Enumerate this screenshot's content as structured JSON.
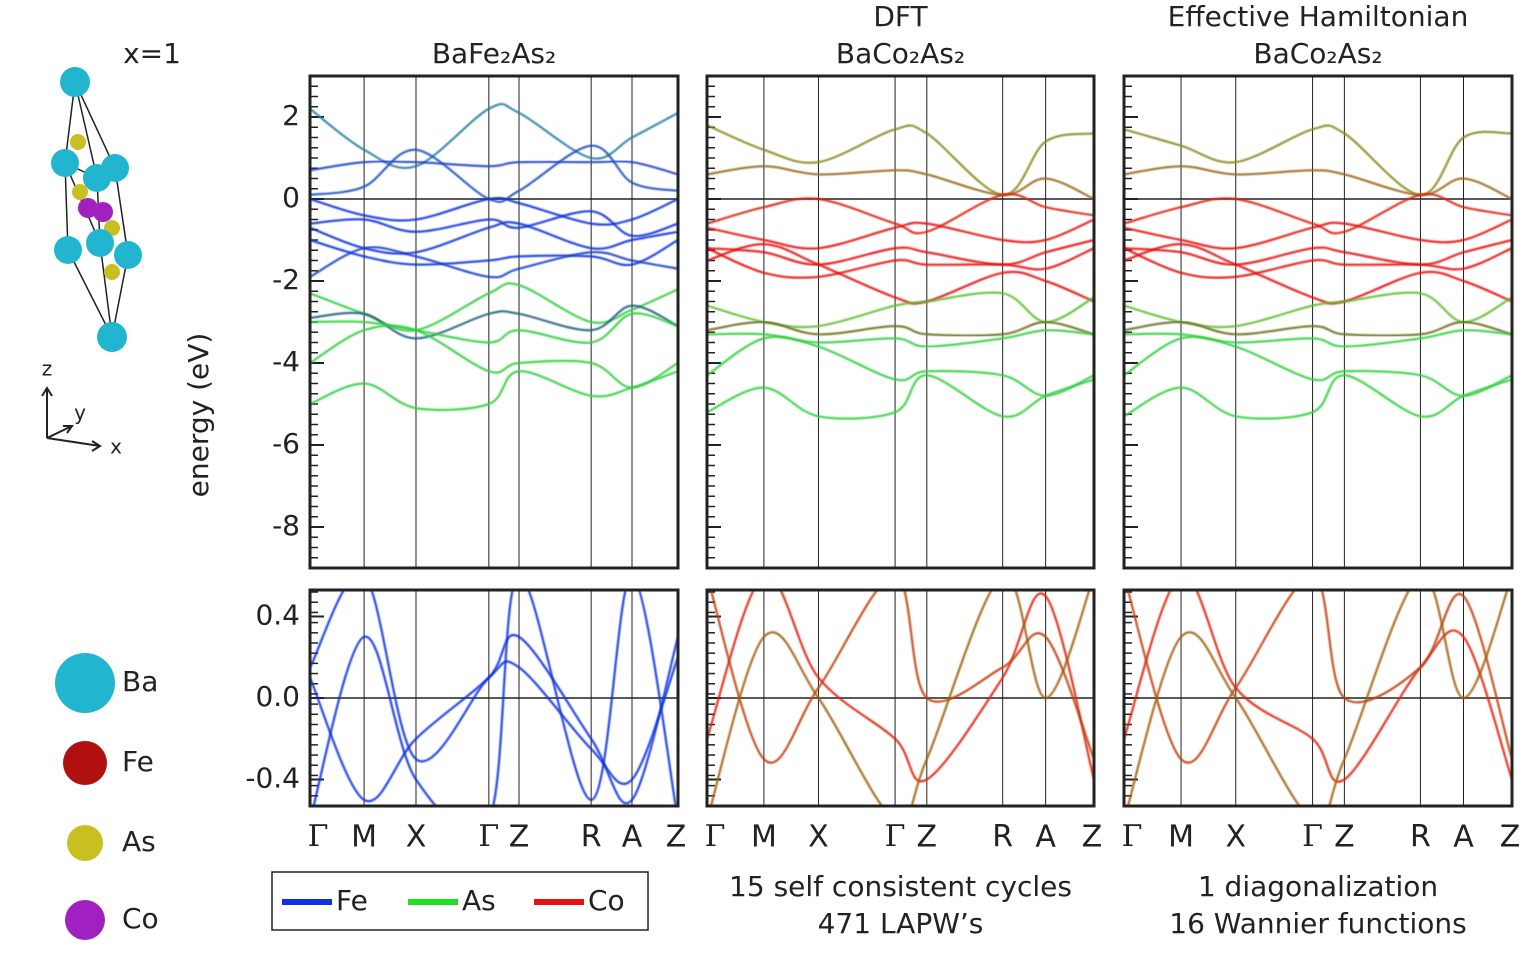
{
  "figure_label": "x=1",
  "axis_label": "energy (eV)",
  "structure_axes": [
    "z",
    "y",
    "x"
  ],
  "atoms": [
    {
      "name": "Ba",
      "color": "#22b5cf"
    },
    {
      "name": "Fe",
      "color": "#b01010"
    },
    {
      "name": "As",
      "color": "#c8c020"
    },
    {
      "name": "Co",
      "color": "#a020c0"
    }
  ],
  "legend": [
    {
      "name": "Fe",
      "color": "#1030e8"
    },
    {
      "name": "As",
      "color": "#20e020"
    },
    {
      "name": "Co",
      "color": "#e81010"
    }
  ],
  "chart_data": [
    {
      "type": "line",
      "title": [
        "BaFe₂As₂"
      ],
      "ylim": [
        -9,
        3
      ],
      "yticks": [
        -8,
        -6,
        -4,
        -2,
        0,
        2
      ],
      "xlim": [
        0,
        1
      ],
      "x": [
        0,
        0.147,
        0.288,
        0.486,
        0.568,
        0.764,
        0.875,
        1
      ],
      "series": [
        {
          "color": "#2a80a0",
          "values": [
            2.2,
            1.2,
            0.8,
            2.2,
            2.1,
            1.0,
            1.5,
            2.1
          ]
        },
        {
          "color": "#2040d0",
          "values": [
            0.7,
            0.9,
            0.9,
            0.8,
            0.9,
            0.9,
            0.9,
            0.6
          ]
        },
        {
          "color": "#2050c0",
          "values": [
            0.1,
            0.3,
            1.2,
            0.0,
            0.2,
            1.3,
            0.4,
            0.2
          ]
        },
        {
          "color": "#1030e0",
          "values": [
            0.0,
            -0.4,
            -0.5,
            0.0,
            -0.1,
            -0.6,
            -0.5,
            0.0
          ]
        },
        {
          "color": "#1030e0",
          "values": [
            -0.6,
            -0.5,
            -0.8,
            -0.5,
            -0.7,
            -0.3,
            -0.9,
            -0.6
          ]
        },
        {
          "color": "#1030e0",
          "values": [
            -0.7,
            -1.2,
            -1.3,
            -0.7,
            -0.6,
            -1.2,
            -1.0,
            -0.8
          ]
        },
        {
          "color": "#1030e0",
          "values": [
            -1.0,
            -1.4,
            -1.6,
            -1.5,
            -1.4,
            -1.4,
            -1.6,
            -1.0
          ]
        },
        {
          "color": "#1840d0",
          "values": [
            -1.9,
            -1.2,
            -1.4,
            -1.9,
            -1.7,
            -1.3,
            -1.5,
            -1.7
          ]
        },
        {
          "color": "#30d040",
          "values": [
            -2.3,
            -2.8,
            -3.2,
            -2.3,
            -2.1,
            -3.0,
            -2.7,
            -2.2
          ]
        },
        {
          "color": "#206080",
          "values": [
            -2.9,
            -2.8,
            -3.4,
            -2.8,
            -2.8,
            -3.2,
            -2.6,
            -3.1
          ]
        },
        {
          "color": "#30d040",
          "values": [
            -3.0,
            -3.0,
            -3.2,
            -3.5,
            -3.2,
            -3.5,
            -2.8,
            -3.1
          ]
        },
        {
          "color": "#30d040",
          "values": [
            -4.0,
            -3.2,
            -3.2,
            -4.2,
            -4.0,
            -4.0,
            -4.6,
            -4.0
          ]
        },
        {
          "color": "#30d040",
          "values": [
            -5.0,
            -4.5,
            -5.1,
            -5.0,
            -4.2,
            -4.8,
            -4.6,
            -4.2
          ]
        }
      ]
    },
    {
      "type": "line",
      "title": [
        "DFT",
        "BaCo₂As₂"
      ],
      "ylim": [
        -9,
        3
      ],
      "yticks": [
        -8,
        -6,
        -4,
        -2,
        0,
        2
      ],
      "xlim": [
        0,
        1
      ],
      "x": [
        0,
        0.147,
        0.288,
        0.486,
        0.568,
        0.764,
        0.875,
        1
      ],
      "series": [
        {
          "color": "#8a8a20",
          "values": [
            1.8,
            1.2,
            0.9,
            1.7,
            1.6,
            0.1,
            1.4,
            1.6
          ]
        },
        {
          "color": "#9a6a20",
          "values": [
            0.6,
            0.8,
            0.6,
            0.7,
            0.6,
            0.1,
            0.5,
            0.0
          ]
        },
        {
          "color": "#e02010",
          "values": [
            -0.6,
            -0.2,
            0.0,
            -0.6,
            -0.8,
            0.1,
            -0.2,
            -0.4
          ]
        },
        {
          "color": "#e81010",
          "values": [
            -0.7,
            -1.0,
            -1.2,
            -0.7,
            -0.6,
            -1.0,
            -1.0,
            -0.5
          ]
        },
        {
          "color": "#e81010",
          "values": [
            -1.2,
            -1.3,
            -1.6,
            -1.2,
            -1.3,
            -1.6,
            -1.3,
            -1.0
          ]
        },
        {
          "color": "#e81010",
          "values": [
            -1.2,
            -1.8,
            -1.9,
            -1.5,
            -1.6,
            -1.6,
            -1.7,
            -1.2
          ]
        },
        {
          "color": "#e81010",
          "values": [
            -1.5,
            -1.1,
            -1.6,
            -2.4,
            -2.5,
            -1.8,
            -2.0,
            -2.5
          ]
        },
        {
          "color": "#60c030",
          "values": [
            -2.6,
            -3.0,
            -3.1,
            -2.6,
            -2.5,
            -2.3,
            -3.0,
            -2.4
          ]
        },
        {
          "color": "#707020",
          "values": [
            -3.2,
            -3.0,
            -3.3,
            -3.1,
            -3.3,
            -3.3,
            -3.0,
            -3.3
          ]
        },
        {
          "color": "#30d040",
          "values": [
            -3.3,
            -3.3,
            -3.5,
            -3.4,
            -3.6,
            -3.4,
            -3.2,
            -3.3
          ]
        },
        {
          "color": "#30d040",
          "values": [
            -4.3,
            -3.4,
            -3.6,
            -4.4,
            -4.2,
            -4.3,
            -4.8,
            -4.3
          ]
        },
        {
          "color": "#30d040",
          "values": [
            -5.2,
            -4.6,
            -5.3,
            -5.2,
            -4.3,
            -5.3,
            -4.8,
            -4.4
          ]
        }
      ]
    },
    {
      "type": "line",
      "title": [
        "Effective Hamiltonian",
        "BaCo₂As₂"
      ],
      "ylim": [
        -9,
        3
      ],
      "yticks": [
        -8,
        -6,
        -4,
        -2,
        0,
        2
      ],
      "xlim": [
        0,
        1
      ],
      "x": [
        0,
        0.147,
        0.288,
        0.486,
        0.568,
        0.764,
        0.875,
        1
      ],
      "series": [
        {
          "color": "#8a8a20",
          "values": [
            1.7,
            1.3,
            0.9,
            1.7,
            1.6,
            0.1,
            1.5,
            1.6
          ]
        },
        {
          "color": "#9a6a20",
          "values": [
            0.6,
            0.8,
            0.6,
            0.7,
            0.6,
            0.1,
            0.5,
            0.0
          ]
        },
        {
          "color": "#e02010",
          "values": [
            -0.6,
            -0.2,
            0.0,
            -0.6,
            -0.8,
            0.1,
            -0.2,
            -0.4
          ]
        },
        {
          "color": "#e81010",
          "values": [
            -0.7,
            -1.0,
            -1.2,
            -0.7,
            -0.6,
            -1.0,
            -1.0,
            -0.5
          ]
        },
        {
          "color": "#e81010",
          "values": [
            -1.2,
            -1.3,
            -1.6,
            -1.2,
            -1.3,
            -1.6,
            -1.3,
            -1.0
          ]
        },
        {
          "color": "#e81010",
          "values": [
            -1.2,
            -1.8,
            -1.9,
            -1.5,
            -1.6,
            -1.6,
            -1.7,
            -1.2
          ]
        },
        {
          "color": "#e81010",
          "values": [
            -1.5,
            -1.1,
            -1.6,
            -2.4,
            -2.5,
            -1.8,
            -2.0,
            -2.5
          ]
        },
        {
          "color": "#60c030",
          "values": [
            -2.6,
            -3.0,
            -3.1,
            -2.6,
            -2.5,
            -2.3,
            -3.0,
            -2.4
          ]
        },
        {
          "color": "#707020",
          "values": [
            -3.2,
            -3.0,
            -3.3,
            -3.1,
            -3.3,
            -3.3,
            -3.0,
            -3.3
          ]
        },
        {
          "color": "#30d040",
          "values": [
            -3.3,
            -3.3,
            -3.5,
            -3.4,
            -3.6,
            -3.4,
            -3.2,
            -3.3
          ]
        },
        {
          "color": "#30d040",
          "values": [
            -4.3,
            -3.4,
            -3.6,
            -4.4,
            -4.2,
            -4.3,
            -4.8,
            -4.3
          ]
        },
        {
          "color": "#30d040",
          "values": [
            -5.3,
            -4.6,
            -5.3,
            -5.2,
            -4.3,
            -5.3,
            -4.8,
            -4.4
          ]
        }
      ]
    },
    {
      "type": "line",
      "ylim": [
        -0.53,
        0.53
      ],
      "yticks": [
        {
          "value": -0.4,
          "label": "-0.4"
        },
        {
          "value": 0,
          "label": "0.0"
        },
        0.4
      ],
      "xlim": [
        0,
        1
      ],
      "x": [
        0,
        0.147,
        0.288,
        0.486,
        0.568,
        0.764,
        0.875,
        1
      ],
      "categories": [
        "Γ",
        "M",
        "X",
        "Γ",
        "Z",
        "R",
        "A",
        "Z"
      ],
      "series": [
        {
          "color": "#1030e0",
          "values": [
            0.1,
            -0.5,
            -0.2,
            0.1,
            0.3,
            -0.2,
            -0.5,
            0.3
          ]
        },
        {
          "color": "#1030e0",
          "values": [
            0.15,
            0.6,
            -0.3,
            0.1,
            0.15,
            -0.25,
            -0.4,
            0.2
          ]
        },
        {
          "color": "#1030e0",
          "values": [
            -0.6,
            0.3,
            -0.4,
            -0.6,
            0.6,
            -0.5,
            0.6,
            -0.6
          ]
        }
      ]
    },
    {
      "type": "line",
      "ylim": [
        -0.53,
        0.53
      ],
      "yticks": [
        -0.4,
        0,
        0.4
      ],
      "xlim": [
        0,
        1
      ],
      "x": [
        0,
        0.147,
        0.288,
        0.486,
        0.568,
        0.764,
        0.875,
        1
      ],
      "categories": [
        "Γ",
        "M",
        "X",
        "Γ",
        "Z",
        "R",
        "A",
        "Z"
      ],
      "caption": [
        "15 self consistent cycles",
        "471 LAPW’s"
      ],
      "series": [
        {
          "color": "#e02010",
          "values": [
            -0.2,
            0.6,
            0.1,
            -0.2,
            -0.4,
            0.1,
            0.5,
            -0.4
          ]
        },
        {
          "color": "#c04010",
          "values": [
            0.6,
            -0.3,
            0.05,
            0.6,
            0.0,
            0.15,
            0.3,
            -0.3
          ]
        },
        {
          "color": "#a06010",
          "values": [
            -0.6,
            0.3,
            0.0,
            -0.6,
            -0.3,
            0.6,
            0.0,
            0.6
          ]
        }
      ]
    },
    {
      "type": "line",
      "ylim": [
        -0.53,
        0.53
      ],
      "yticks": [
        -0.4,
        0,
        0.4
      ],
      "xlim": [
        0,
        1
      ],
      "x": [
        0,
        0.147,
        0.288,
        0.486,
        0.568,
        0.764,
        0.875,
        1
      ],
      "categories": [
        "Γ",
        "M",
        "X",
        "Γ",
        "Z",
        "R",
        "A",
        "Z"
      ],
      "caption": [
        "1 diagonalization",
        "16 Wannier functions"
      ],
      "series": [
        {
          "color": "#e02010",
          "values": [
            -0.2,
            0.6,
            0.05,
            -0.2,
            -0.4,
            0.15,
            0.3,
            -0.4
          ]
        },
        {
          "color": "#c04010",
          "values": [
            0.6,
            -0.3,
            0.05,
            0.6,
            0.0,
            0.15,
            0.5,
            -0.3
          ]
        },
        {
          "color": "#a06010",
          "values": [
            -0.6,
            0.3,
            0.0,
            -0.6,
            -0.3,
            0.6,
            0.0,
            0.6
          ]
        }
      ]
    }
  ]
}
